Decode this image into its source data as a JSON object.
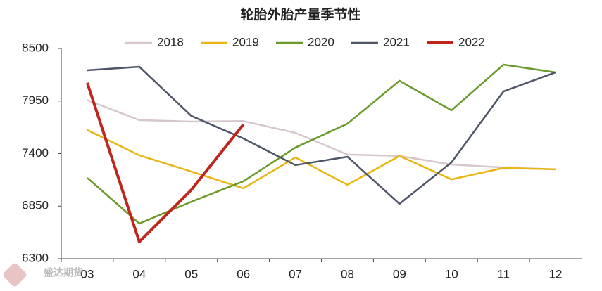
{
  "chart_data": {
    "type": "line",
    "title": "轮胎外胎产量季节性",
    "categories": [
      "03",
      "04",
      "05",
      "06",
      "07",
      "08",
      "09",
      "10",
      "11",
      "12"
    ],
    "series": [
      {
        "name": "2018",
        "color": "#d6c7cb",
        "values": [
          7960,
          7750,
          7735,
          7740,
          7617,
          7390,
          7375,
          7285,
          7255,
          7235
        ]
      },
      {
        "name": "2019",
        "color": "#e8b512",
        "values": [
          7647,
          7382,
          7212,
          7036,
          7360,
          7073,
          7375,
          7130,
          7250,
          7235
        ]
      },
      {
        "name": "2020",
        "color": "#6a9a2a",
        "values": [
          7146,
          6668,
          6896,
          7110,
          7463,
          7713,
          8162,
          7853,
          8331,
          8250
        ]
      },
      {
        "name": "2021",
        "color": "#4d5566",
        "values": [
          8272,
          8309,
          7794,
          7558,
          7279,
          7367,
          6874,
          7308,
          8051,
          8250
        ]
      },
      {
        "name": "2022",
        "color": "#c0261d",
        "values": [
          8140,
          6477,
          7021,
          7705,
          null,
          null,
          null,
          null,
          null,
          null
        ]
      }
    ],
    "ylim": [
      6300,
      8500
    ],
    "yticks": [
      6300,
      6850,
      7400,
      7950,
      8500
    ],
    "grid": false,
    "legend": "top",
    "logo_text": "盛达期货"
  }
}
